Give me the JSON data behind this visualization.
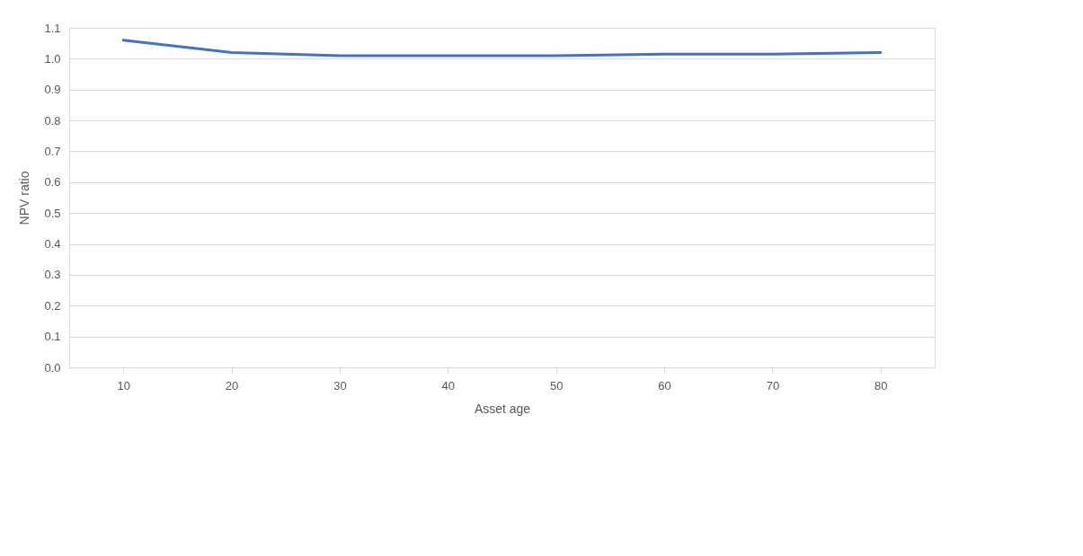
{
  "chart_data": {
    "type": "line",
    "xlabel": "Asset age",
    "ylabel": "NPV ratio",
    "categories": [
      "10",
      "20",
      "30",
      "40",
      "50",
      "60",
      "70",
      "80"
    ],
    "series": [
      {
        "color": "#4472c4",
        "values": [
          1.06,
          1.02,
          1.01,
          1.01,
          1.01,
          1.015,
          1.015,
          1.02
        ]
      }
    ],
    "ylim": [
      0,
      1.1
    ],
    "yticks": [
      {
        "value": 0,
        "label": "0.0"
      },
      0.1,
      0.2,
      0.3,
      0.4,
      0.5,
      0.6,
      0.7,
      0.8,
      0.9,
      {
        "value": 1,
        "label": "1.0"
      },
      1.1
    ],
    "grid": "y",
    "marker": "none",
    "line_style": "solid"
  }
}
